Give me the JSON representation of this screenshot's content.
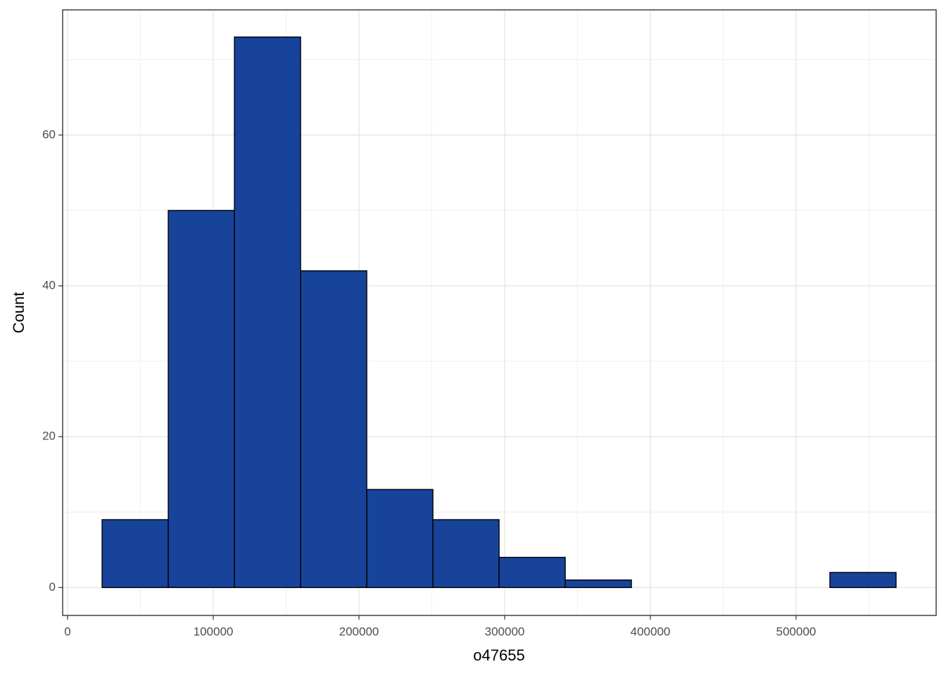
{
  "chart_data": {
    "type": "histogram",
    "x_label": "o47655",
    "y_label": "Count",
    "bins": [
      23700,
      69110,
      114520,
      159930,
      205340,
      250750,
      296160,
      341570,
      386980,
      432390,
      477800,
      523210,
      568620
    ],
    "values": [
      9,
      50,
      73,
      42,
      13,
      9,
      4,
      1,
      0,
      0,
      0,
      2
    ],
    "color": "#17439a",
    "edge_color": "#000000",
    "xlim": [
      -3382,
      596135
    ],
    "xticks": [
      0,
      100000,
      200000,
      300000,
      400000,
      500000
    ],
    "ylim": [
      -3.7,
      76.6
    ],
    "yticks": [
      0,
      20,
      40,
      60
    ],
    "grid": true
  }
}
